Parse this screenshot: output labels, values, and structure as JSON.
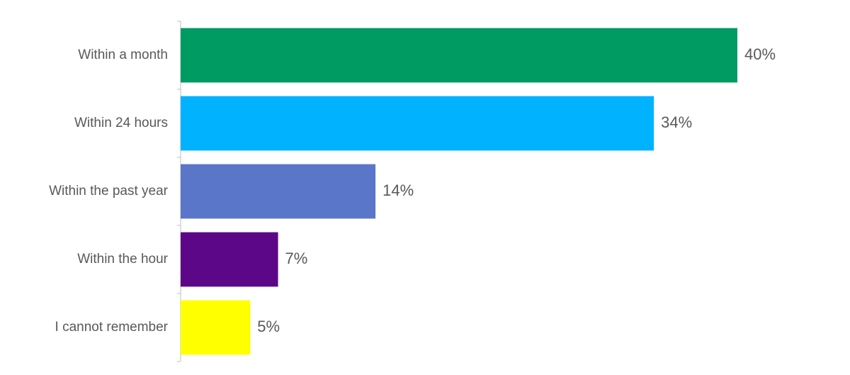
{
  "chart_data": {
    "type": "bar",
    "orientation": "horizontal",
    "categories": [
      "Within a month",
      "Within 24 hours",
      "Within the past year",
      "Within the hour",
      "I cannot remember"
    ],
    "values": [
      40,
      34,
      14,
      7,
      5
    ],
    "value_labels": [
      "40%",
      "34%",
      "14%",
      "7%",
      "5%"
    ],
    "colors": [
      "#009a63",
      "#00b2ff",
      "#5a76c9",
      "#5c0788",
      "#ffff00"
    ]
  }
}
